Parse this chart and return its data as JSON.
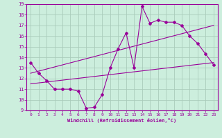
{
  "xlabel": "Windchill (Refroidissement éolien,°C)",
  "bg_color": "#cceedd",
  "line_color": "#990099",
  "grid_color": "#aaccbb",
  "xlim": [
    -0.5,
    23.5
  ],
  "ylim": [
    9,
    19
  ],
  "yticks": [
    9,
    10,
    11,
    12,
    13,
    14,
    15,
    16,
    17,
    18,
    19
  ],
  "xticks": [
    0,
    1,
    2,
    3,
    4,
    5,
    6,
    7,
    8,
    9,
    10,
    11,
    12,
    13,
    14,
    15,
    16,
    17,
    18,
    19,
    20,
    21,
    22,
    23
  ],
  "line1_x": [
    0,
    1,
    2,
    3,
    4,
    5,
    6,
    7,
    8,
    9,
    10,
    11,
    12,
    13,
    14,
    15,
    16,
    17,
    18,
    19,
    20,
    21,
    22,
    23
  ],
  "line1_y": [
    13.5,
    12.5,
    11.8,
    11.0,
    11.0,
    11.0,
    10.8,
    9.2,
    9.3,
    10.5,
    13.0,
    14.8,
    16.3,
    13.0,
    18.8,
    17.2,
    17.5,
    17.3,
    17.3,
    17.0,
    16.0,
    15.3,
    14.3,
    13.3
  ],
  "line2_x": [
    0,
    23
  ],
  "line2_y": [
    12.5,
    17.0
  ],
  "line3_x": [
    0,
    23
  ],
  "line3_y": [
    11.5,
    13.5
  ]
}
